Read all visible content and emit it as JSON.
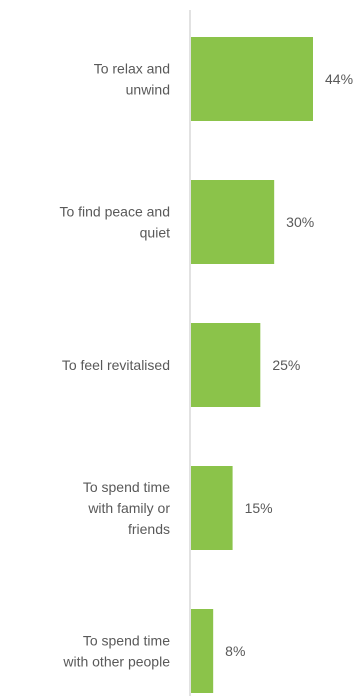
{
  "chart_data": {
    "type": "bar",
    "orientation": "horizontal",
    "categories": [
      [
        "To relax and",
        "unwind"
      ],
      [
        "To find peace and",
        "quiet"
      ],
      [
        "To feel revitalised"
      ],
      [
        "To spend time",
        "with family or",
        "friends"
      ],
      [
        "To spend time",
        "with other people"
      ]
    ],
    "values": [
      44,
      30,
      25,
      15,
      8
    ],
    "value_labels": [
      "44%",
      "30%",
      "25%",
      "15%",
      "8%"
    ],
    "xlim": [
      0,
      44
    ],
    "grid": false,
    "legend": "none",
    "colors": {
      "bar": "#8bc34a",
      "axis": "#d9d9d9",
      "text": "#595959"
    }
  }
}
